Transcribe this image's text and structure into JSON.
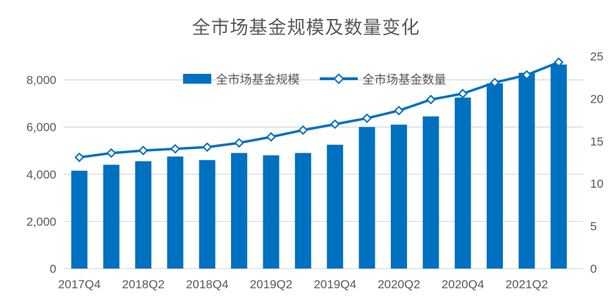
{
  "title": "全市场基金规模及数量变化",
  "legend": [
    {
      "label": "全市场基金规模",
      "swatch": "bar-swatch"
    },
    {
      "label": "全市场基金数量",
      "swatch": "line-diamond-swatch"
    }
  ],
  "colors": {
    "series_blue": "#0070C0",
    "marker_fill": "#FFFFFF",
    "gridline": "#D9D9D9",
    "text_gray": "#595959"
  },
  "chart_data": {
    "type": "bar",
    "subtype": "bar+line combo, dual axis",
    "title": "全市场基金规模及数量变化",
    "categories": [
      "2017Q4",
      "2018Q1",
      "2018Q2",
      "2018Q3",
      "2018Q4",
      "2019Q1",
      "2019Q2",
      "2019Q3",
      "2019Q4",
      "2020Q1",
      "2020Q2",
      "2020Q3",
      "2020Q4",
      "2021Q1",
      "2021Q2",
      "2021Q3"
    ],
    "x_tick_labels": [
      "2017Q4",
      "2018Q2",
      "2018Q4",
      "2019Q2",
      "2019Q4",
      "2020Q2",
      "2020Q4",
      "2021Q2"
    ],
    "x_label_every": 2,
    "series": [
      {
        "name": "全市场基金规模",
        "type": "bar",
        "axis": "left",
        "values": [
          4150,
          4400,
          4550,
          4750,
          4600,
          4900,
          4800,
          4900,
          5250,
          6000,
          6100,
          6450,
          7250,
          7850,
          8300,
          8650
        ]
      },
      {
        "name": "全市场基金数量",
        "type": "line",
        "axis": "right",
        "marker": "diamond",
        "values": [
          13.1,
          13.6,
          13.9,
          14.1,
          14.3,
          14.8,
          15.5,
          16.3,
          17.0,
          17.7,
          18.6,
          19.9,
          20.6,
          21.9,
          22.8,
          24.3
        ]
      }
    ],
    "left_axis": {
      "ticks": [
        0,
        2000,
        4000,
        6000,
        8000
      ],
      "tick_labels": [
        "0",
        "2,000",
        "4,000",
        "6,000",
        "8,000"
      ],
      "min": 0,
      "max": 9000
    },
    "right_axis": {
      "ticks": [
        0,
        5,
        10,
        15,
        20,
        25
      ],
      "tick_labels": [
        "0",
        "5",
        "10",
        "15",
        "20",
        "25"
      ],
      "min": 0,
      "max": 25
    },
    "grid": "horizontal",
    "legend_position": "top-center-inside"
  }
}
